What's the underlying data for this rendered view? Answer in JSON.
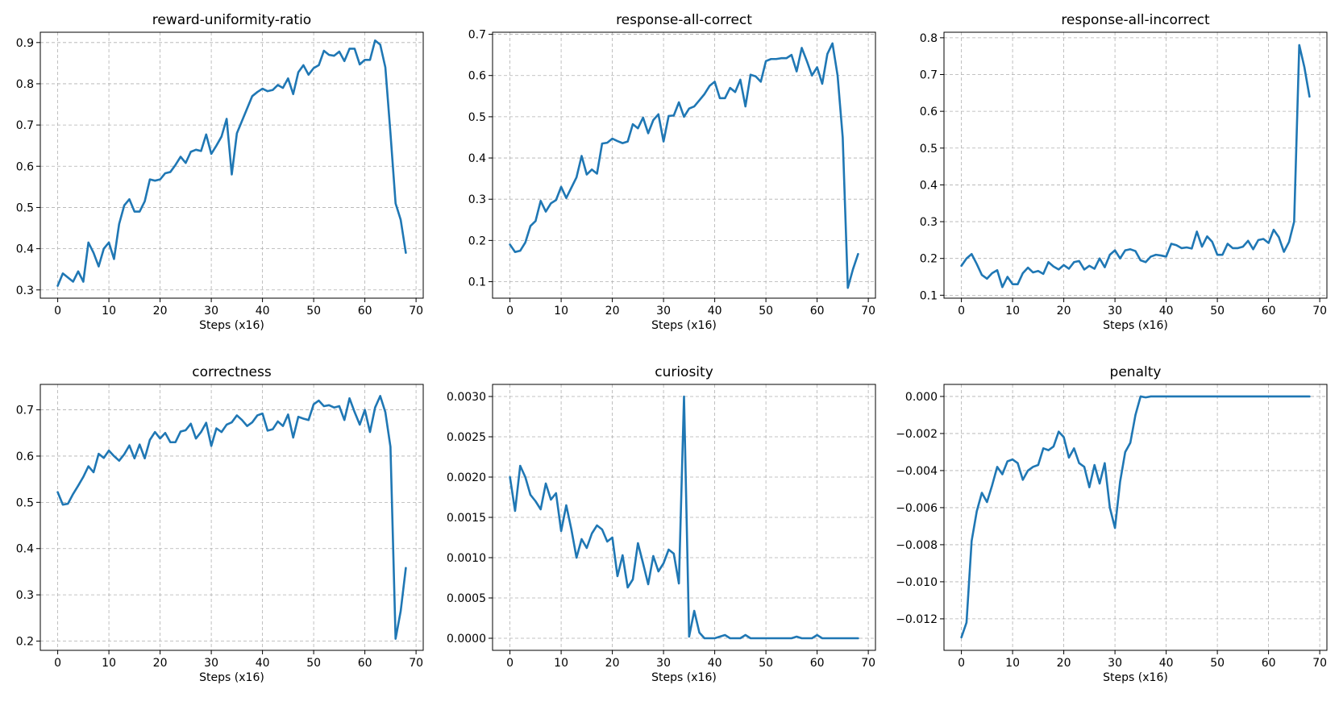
{
  "chart_data": [
    {
      "type": "line",
      "title": "reward-uniformity-ratio",
      "xlabel": "Steps (x16)",
      "ylabel": "",
      "xlim": [
        -3.4,
        71.4
      ],
      "ylim": [
        0.28,
        0.925
      ],
      "xticks": [
        0,
        10,
        20,
        30,
        40,
        50,
        60,
        70
      ],
      "yticks": [
        0.3,
        0.4,
        0.5,
        0.6,
        0.7,
        0.8,
        0.9
      ],
      "ytick_labels": [
        "0.3",
        "0.4",
        "0.5",
        "0.6",
        "0.7",
        "0.8",
        "0.9"
      ],
      "grid": true,
      "color": "#1f77b4",
      "x": [
        0,
        1,
        2,
        3,
        4,
        5,
        6,
        7,
        8,
        9,
        10,
        11,
        12,
        13,
        14,
        15,
        16,
        17,
        18,
        19,
        20,
        21,
        22,
        23,
        24,
        25,
        26,
        27,
        28,
        29,
        30,
        31,
        32,
        33,
        34,
        35,
        36,
        37,
        38,
        39,
        40,
        41,
        42,
        43,
        44,
        45,
        46,
        47,
        48,
        49,
        50,
        51,
        52,
        53,
        54,
        55,
        56,
        57,
        58,
        59,
        60,
        61,
        62,
        63,
        64,
        65,
        66,
        67,
        68
      ],
      "y": [
        0.31,
        0.34,
        0.33,
        0.32,
        0.345,
        0.32,
        0.415,
        0.39,
        0.357,
        0.4,
        0.415,
        0.375,
        0.46,
        0.505,
        0.52,
        0.49,
        0.49,
        0.515,
        0.568,
        0.565,
        0.568,
        0.583,
        0.586,
        0.603,
        0.623,
        0.608,
        0.635,
        0.64,
        0.637,
        0.677,
        0.63,
        0.65,
        0.672,
        0.715,
        0.58,
        0.68,
        0.71,
        0.74,
        0.77,
        0.78,
        0.788,
        0.782,
        0.785,
        0.797,
        0.79,
        0.813,
        0.775,
        0.828,
        0.845,
        0.822,
        0.838,
        0.845,
        0.88,
        0.87,
        0.868,
        0.878,
        0.855,
        0.885,
        0.885,
        0.847,
        0.858,
        0.858,
        0.905,
        0.895,
        0.84,
        0.68,
        0.51,
        0.47,
        0.39
      ]
    },
    {
      "type": "line",
      "title": "response-all-correct",
      "xlabel": "Steps (x16)",
      "ylabel": "",
      "xlim": [
        -3.4,
        71.4
      ],
      "ylim": [
        0.06,
        0.705
      ],
      "xticks": [
        0,
        10,
        20,
        30,
        40,
        50,
        60,
        70
      ],
      "yticks": [
        0.1,
        0.2,
        0.3,
        0.4,
        0.5,
        0.6,
        0.7
      ],
      "ytick_labels": [
        "0.1",
        "0.2",
        "0.3",
        "0.4",
        "0.5",
        "0.6",
        "0.7"
      ],
      "grid": true,
      "color": "#1f77b4",
      "x": [
        0,
        1,
        2,
        3,
        4,
        5,
        6,
        7,
        8,
        9,
        10,
        11,
        12,
        13,
        14,
        15,
        16,
        17,
        18,
        19,
        20,
        21,
        22,
        23,
        24,
        25,
        26,
        27,
        28,
        29,
        30,
        31,
        32,
        33,
        34,
        35,
        36,
        37,
        38,
        39,
        40,
        41,
        42,
        43,
        44,
        45,
        46,
        47,
        48,
        49,
        50,
        51,
        52,
        53,
        54,
        55,
        56,
        57,
        58,
        59,
        60,
        61,
        62,
        63,
        64,
        65,
        66,
        67,
        68
      ],
      "y": [
        0.19,
        0.172,
        0.175,
        0.195,
        0.235,
        0.247,
        0.296,
        0.27,
        0.29,
        0.298,
        0.33,
        0.303,
        0.328,
        0.353,
        0.405,
        0.36,
        0.372,
        0.362,
        0.435,
        0.437,
        0.447,
        0.441,
        0.436,
        0.44,
        0.482,
        0.472,
        0.498,
        0.46,
        0.492,
        0.506,
        0.44,
        0.502,
        0.503,
        0.535,
        0.5,
        0.52,
        0.525,
        0.54,
        0.555,
        0.575,
        0.585,
        0.545,
        0.545,
        0.57,
        0.56,
        0.59,
        0.525,
        0.602,
        0.598,
        0.585,
        0.635,
        0.64,
        0.64,
        0.642,
        0.642,
        0.65,
        0.61,
        0.667,
        0.635,
        0.6,
        0.62,
        0.58,
        0.652,
        0.678,
        0.6,
        0.45,
        0.085,
        0.13,
        0.167
      ]
    },
    {
      "type": "line",
      "title": "response-all-incorrect",
      "xlabel": "Steps (x16)",
      "ylabel": "",
      "xlim": [
        -3.4,
        71.4
      ],
      "ylim": [
        0.092,
        0.815
      ],
      "xticks": [
        0,
        10,
        20,
        30,
        40,
        50,
        60,
        70
      ],
      "yticks": [
        0.1,
        0.2,
        0.3,
        0.4,
        0.5,
        0.6,
        0.7,
        0.8
      ],
      "ytick_labels": [
        "0.1",
        "0.2",
        "0.3",
        "0.4",
        "0.5",
        "0.6",
        "0.7",
        "0.8"
      ],
      "grid": true,
      "color": "#1f77b4",
      "x": [
        0,
        1,
        2,
        3,
        4,
        5,
        6,
        7,
        8,
        9,
        10,
        11,
        12,
        13,
        14,
        15,
        16,
        17,
        18,
        19,
        20,
        21,
        22,
        23,
        24,
        25,
        26,
        27,
        28,
        29,
        30,
        31,
        32,
        33,
        34,
        35,
        36,
        37,
        38,
        39,
        40,
        41,
        42,
        43,
        44,
        45,
        46,
        47,
        48,
        49,
        50,
        51,
        52,
        53,
        54,
        55,
        56,
        57,
        58,
        59,
        60,
        61,
        62,
        63,
        64,
        65,
        66,
        67,
        68
      ],
      "y": [
        0.18,
        0.2,
        0.212,
        0.185,
        0.155,
        0.145,
        0.16,
        0.168,
        0.122,
        0.15,
        0.13,
        0.13,
        0.16,
        0.175,
        0.162,
        0.166,
        0.158,
        0.19,
        0.178,
        0.17,
        0.182,
        0.172,
        0.19,
        0.193,
        0.17,
        0.18,
        0.172,
        0.2,
        0.176,
        0.21,
        0.222,
        0.2,
        0.222,
        0.225,
        0.22,
        0.195,
        0.19,
        0.205,
        0.21,
        0.208,
        0.205,
        0.24,
        0.236,
        0.228,
        0.23,
        0.227,
        0.273,
        0.232,
        0.26,
        0.245,
        0.21,
        0.21,
        0.24,
        0.228,
        0.228,
        0.232,
        0.248,
        0.225,
        0.25,
        0.253,
        0.242,
        0.278,
        0.258,
        0.218,
        0.245,
        0.3,
        0.78,
        0.72,
        0.64
      ]
    },
    {
      "type": "line",
      "title": "correctness",
      "xlabel": "Steps (x16)",
      "ylabel": "",
      "xlim": [
        -3.4,
        71.4
      ],
      "ylim": [
        0.18,
        0.755
      ],
      "xticks": [
        0,
        10,
        20,
        30,
        40,
        50,
        60,
        70
      ],
      "yticks": [
        0.2,
        0.3,
        0.4,
        0.5,
        0.6,
        0.7
      ],
      "ytick_labels": [
        "0.2",
        "0.3",
        "0.4",
        "0.5",
        "0.6",
        "0.7"
      ],
      "grid": true,
      "color": "#1f77b4",
      "x": [
        0,
        1,
        2,
        3,
        4,
        5,
        6,
        7,
        8,
        9,
        10,
        11,
        12,
        13,
        14,
        15,
        16,
        17,
        18,
        19,
        20,
        21,
        22,
        23,
        24,
        25,
        26,
        27,
        28,
        29,
        30,
        31,
        32,
        33,
        34,
        35,
        36,
        37,
        38,
        39,
        40,
        41,
        42,
        43,
        44,
        45,
        46,
        47,
        48,
        49,
        50,
        51,
        52,
        53,
        54,
        55,
        56,
        57,
        58,
        59,
        60,
        61,
        62,
        63,
        64,
        65,
        66,
        67,
        68
      ],
      "y": [
        0.522,
        0.495,
        0.497,
        0.518,
        0.536,
        0.555,
        0.578,
        0.565,
        0.605,
        0.596,
        0.612,
        0.6,
        0.59,
        0.604,
        0.623,
        0.595,
        0.625,
        0.595,
        0.635,
        0.652,
        0.638,
        0.65,
        0.63,
        0.63,
        0.653,
        0.656,
        0.67,
        0.638,
        0.652,
        0.672,
        0.622,
        0.66,
        0.652,
        0.668,
        0.673,
        0.688,
        0.678,
        0.665,
        0.673,
        0.688,
        0.692,
        0.655,
        0.658,
        0.675,
        0.665,
        0.69,
        0.64,
        0.685,
        0.681,
        0.678,
        0.712,
        0.72,
        0.708,
        0.71,
        0.705,
        0.708,
        0.678,
        0.725,
        0.695,
        0.668,
        0.7,
        0.652,
        0.705,
        0.73,
        0.695,
        0.62,
        0.205,
        0.265,
        0.358
      ]
    },
    {
      "type": "line",
      "title": "curiosity",
      "xlabel": "Steps (x16)",
      "ylabel": "",
      "xlim": [
        -3.4,
        71.4
      ],
      "ylim": [
        -0.00015,
        0.00315
      ],
      "xticks": [
        0,
        10,
        20,
        30,
        40,
        50,
        60,
        70
      ],
      "yticks": [
        0,
        0.0005,
        0.001,
        0.0015,
        0.002,
        0.0025,
        0.003
      ],
      "ytick_labels": [
        "0.0000",
        "0.0005",
        "0.0010",
        "0.0015",
        "0.0020",
        "0.0025",
        "0.0030"
      ],
      "grid": true,
      "color": "#1f77b4",
      "x": [
        0,
        1,
        2,
        3,
        4,
        5,
        6,
        7,
        8,
        9,
        10,
        11,
        12,
        13,
        14,
        15,
        16,
        17,
        18,
        19,
        20,
        21,
        22,
        23,
        24,
        25,
        26,
        27,
        28,
        29,
        30,
        31,
        32,
        33,
        34,
        35,
        36,
        37,
        38,
        39,
        40,
        41,
        42,
        43,
        44,
        45,
        46,
        47,
        48,
        49,
        50,
        51,
        52,
        53,
        54,
        55,
        56,
        57,
        58,
        59,
        60,
        61,
        62,
        63,
        64,
        65,
        66,
        67,
        68
      ],
      "y": [
        0.002,
        0.00158,
        0.00214,
        0.002,
        0.00178,
        0.0017,
        0.0016,
        0.00192,
        0.00172,
        0.0018,
        0.00133,
        0.00165,
        0.00135,
        0.001,
        0.00123,
        0.00112,
        0.0013,
        0.0014,
        0.00135,
        0.0012,
        0.00125,
        0.00077,
        0.00103,
        0.00063,
        0.00073,
        0.00118,
        0.00093,
        0.00067,
        0.00102,
        0.00083,
        0.00093,
        0.0011,
        0.00105,
        0.00068,
        0.003,
        2e-05,
        0.00034,
        7e-05,
        0,
        0,
        0,
        2e-05,
        4e-05,
        0,
        0,
        0,
        4e-05,
        0,
        0,
        0,
        0,
        0,
        0,
        0,
        0,
        0,
        2e-05,
        0,
        0,
        0,
        4e-05,
        0,
        0,
        0,
        0,
        0,
        0,
        0,
        0
      ]
    },
    {
      "type": "line",
      "title": "penalty",
      "xlabel": "Steps (x16)",
      "ylabel": "",
      "xlim": [
        -3.4,
        71.4
      ],
      "ylim": [
        -0.0137,
        0.00065
      ],
      "xticks": [
        0,
        10,
        20,
        30,
        40,
        50,
        60,
        70
      ],
      "yticks": [
        0,
        -0.002,
        -0.004,
        -0.006,
        -0.008,
        -0.01,
        -0.012
      ],
      "ytick_labels": [
        "0.000",
        "−0.002",
        "−0.004",
        "−0.006",
        "−0.008",
        "−0.010",
        "−0.012"
      ],
      "grid": true,
      "color": "#1f77b4",
      "x": [
        0,
        1,
        2,
        3,
        4,
        5,
        6,
        7,
        8,
        9,
        10,
        11,
        12,
        13,
        14,
        15,
        16,
        17,
        18,
        19,
        20,
        21,
        22,
        23,
        24,
        25,
        26,
        27,
        28,
        29,
        30,
        31,
        32,
        33,
        34,
        35,
        36,
        37,
        38,
        39,
        40,
        41,
        42,
        43,
        44,
        45,
        46,
        47,
        48,
        49,
        50,
        51,
        52,
        53,
        54,
        55,
        56,
        57,
        58,
        59,
        60,
        61,
        62,
        63,
        64,
        65,
        66,
        67,
        68
      ],
      "y": [
        -0.013,
        -0.0122,
        -0.0078,
        -0.0062,
        -0.0052,
        -0.0057,
        -0.0048,
        -0.0038,
        -0.0042,
        -0.0035,
        -0.0034,
        -0.0036,
        -0.0045,
        -0.004,
        -0.0038,
        -0.0037,
        -0.0028,
        -0.0029,
        -0.0027,
        -0.0019,
        -0.0022,
        -0.0033,
        -0.0028,
        -0.0036,
        -0.0038,
        -0.0049,
        -0.0037,
        -0.0047,
        -0.0036,
        -0.006,
        -0.0071,
        -0.0046,
        -0.003,
        -0.0025,
        -0.001,
        0,
        -5e-05,
        0,
        0,
        0,
        0,
        0,
        0,
        0,
        0,
        0,
        0,
        0,
        0,
        0,
        0,
        0,
        0,
        0,
        0,
        0,
        0,
        0,
        0,
        0,
        0,
        0,
        0,
        0,
        0,
        0,
        0,
        0,
        0
      ]
    }
  ]
}
